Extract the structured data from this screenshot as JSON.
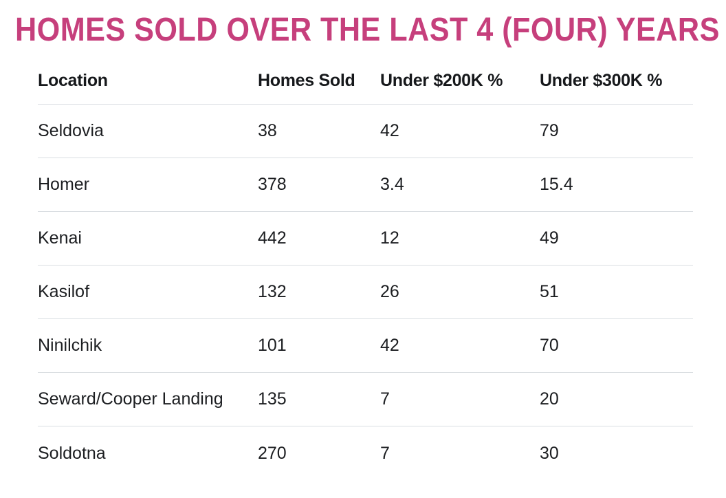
{
  "title": "HOMES SOLD OVER THE LAST 4 (FOUR) YEARS",
  "colors": {
    "title_pink": "#C63F7C",
    "body_text": "#1C1E21",
    "divider": "#D9DDE1",
    "background": "#FFFFFF"
  },
  "table": {
    "headers": [
      "Location",
      "Homes Sold",
      "Under $200K %",
      "Under $300K %"
    ],
    "rows": [
      [
        "Seldovia",
        "38",
        "42",
        "79"
      ],
      [
        "Homer",
        "378",
        "3.4",
        "15.4"
      ],
      [
        "Kenai",
        "442",
        "12",
        "49"
      ],
      [
        "Kasilof",
        "132",
        "26",
        "51"
      ],
      [
        "Ninilchik",
        "101",
        "42",
        "70"
      ],
      [
        "Seward/Cooper Landing",
        "135",
        "7",
        "20"
      ],
      [
        "Soldotna",
        "270",
        "7",
        "30"
      ]
    ]
  },
  "chart_data": {
    "type": "table",
    "title": "HOMES SOLD OVER THE LAST 4 (FOUR) YEARS",
    "columns": [
      "Location",
      "Homes Sold",
      "Under $200K %",
      "Under $300K %"
    ],
    "categories": [
      "Seldovia",
      "Homer",
      "Kenai",
      "Kasilof",
      "Ninilchik",
      "Seward/Cooper Landing",
      "Soldotna"
    ],
    "series": [
      {
        "name": "Homes Sold",
        "values": [
          38,
          378,
          442,
          132,
          101,
          135,
          270
        ]
      },
      {
        "name": "Under $200K %",
        "values": [
          42,
          3.4,
          12,
          26,
          42,
          7,
          7
        ]
      },
      {
        "name": "Under $300K %",
        "values": [
          79,
          15.4,
          49,
          51,
          70,
          20,
          30
        ]
      }
    ],
    "layout": {
      "grid": "horizontal-row-dividers",
      "header_style": "bold",
      "title_color": "#C63F7C"
    }
  }
}
